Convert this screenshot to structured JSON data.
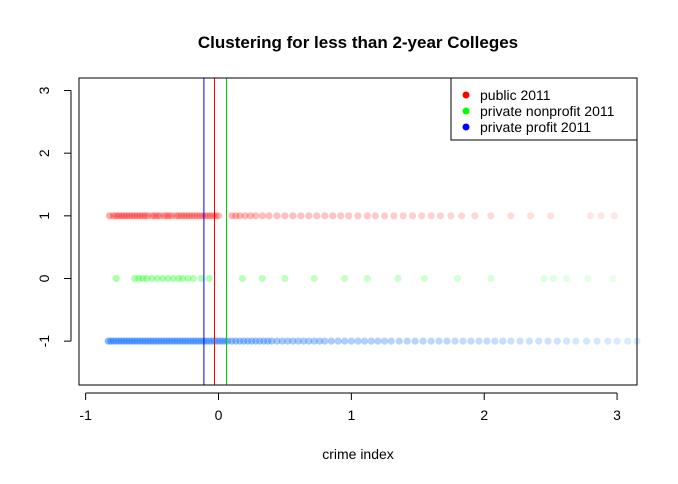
{
  "chart_data": {
    "type": "scatter",
    "title": "Clustering for less than 2-year Colleges",
    "xlabel": "crime index",
    "ylabel": "",
    "xlim": [
      -1.05,
      3.15
    ],
    "ylim": [
      -1.7,
      3.2
    ],
    "x_ticks": [
      -1,
      0,
      1,
      2,
      3
    ],
    "y_ticks": [
      -1,
      0,
      1,
      2,
      3
    ],
    "legend_position": "top-right",
    "series": [
      {
        "name": "public 2011",
        "color": "#ff0000",
        "y": 1,
        "x": [
          -0.82,
          -0.79,
          -0.77,
          -0.75,
          -0.73,
          -0.71,
          -0.69,
          -0.67,
          -0.65,
          -0.63,
          -0.61,
          -0.59,
          -0.57,
          -0.55,
          -0.53,
          -0.5,
          -0.48,
          -0.46,
          -0.44,
          -0.41,
          -0.39,
          -0.37,
          -0.35,
          -0.32,
          -0.3,
          -0.28,
          -0.26,
          -0.24,
          -0.22,
          -0.2,
          -0.18,
          -0.16,
          -0.14,
          -0.12,
          -0.1,
          -0.08,
          -0.06,
          -0.04,
          -0.02,
          0.0,
          0.1,
          0.13,
          0.16,
          0.2,
          0.24,
          0.28,
          0.33,
          0.38,
          0.44,
          0.5,
          0.56,
          0.62,
          0.68,
          0.74,
          0.8,
          0.86,
          0.92,
          0.98,
          1.05,
          1.12,
          1.18,
          1.25,
          1.32,
          1.39,
          1.46,
          1.53,
          1.6,
          1.67,
          1.75,
          1.83,
          1.93,
          2.05,
          2.2,
          2.35,
          2.5,
          2.8,
          2.88,
          2.98
        ]
      },
      {
        "name": "private nonprofit 2011",
        "color": "#00ff00",
        "y": 0,
        "x": [
          -0.77,
          -0.63,
          -0.6,
          -0.57,
          -0.54,
          -0.5,
          -0.46,
          -0.42,
          -0.38,
          -0.34,
          -0.3,
          -0.27,
          -0.23,
          -0.19,
          -0.13,
          -0.07,
          0.18,
          0.33,
          0.5,
          0.72,
          0.95,
          1.12,
          1.35,
          1.55,
          1.8,
          2.05,
          2.45,
          2.52,
          2.62,
          2.78,
          2.97
        ]
      },
      {
        "name": "private profit 2011",
        "color": "#0000ff",
        "dot_color": "#1e78ff",
        "y": -1,
        "x": [
          -0.83,
          -0.81,
          -0.79,
          -0.77,
          -0.75,
          -0.73,
          -0.71,
          -0.69,
          -0.67,
          -0.65,
          -0.63,
          -0.61,
          -0.59,
          -0.57,
          -0.55,
          -0.53,
          -0.51,
          -0.49,
          -0.47,
          -0.45,
          -0.43,
          -0.41,
          -0.39,
          -0.37,
          -0.35,
          -0.33,
          -0.31,
          -0.29,
          -0.27,
          -0.25,
          -0.23,
          -0.21,
          -0.19,
          -0.17,
          -0.15,
          -0.13,
          -0.11,
          -0.09,
          -0.07,
          -0.05,
          -0.03,
          -0.01,
          0.01,
          0.03,
          0.05,
          0.07,
          0.1,
          0.13,
          0.16,
          0.19,
          0.22,
          0.25,
          0.28,
          0.31,
          0.34,
          0.37,
          0.4,
          0.44,
          0.48,
          0.52,
          0.56,
          0.6,
          0.64,
          0.68,
          0.72,
          0.76,
          0.8,
          0.85,
          0.9,
          0.95,
          1.0,
          1.05,
          1.1,
          1.15,
          1.2,
          1.25,
          1.3,
          1.36,
          1.42,
          1.48,
          1.54,
          1.6,
          1.66,
          1.72,
          1.78,
          1.84,
          1.9,
          1.96,
          2.02,
          2.08,
          2.14,
          2.2,
          2.27,
          2.34,
          2.41,
          2.48,
          2.55,
          2.62,
          2.69,
          2.77,
          2.85,
          2.93,
          3.0,
          3.08,
          3.15
        ]
      }
    ],
    "vertical_lines": [
      {
        "x": -0.11,
        "color": "#0000ff"
      },
      {
        "x": -0.03,
        "color": "#ff0000"
      },
      {
        "x": 0.06,
        "color": "#00cc00"
      }
    ]
  }
}
